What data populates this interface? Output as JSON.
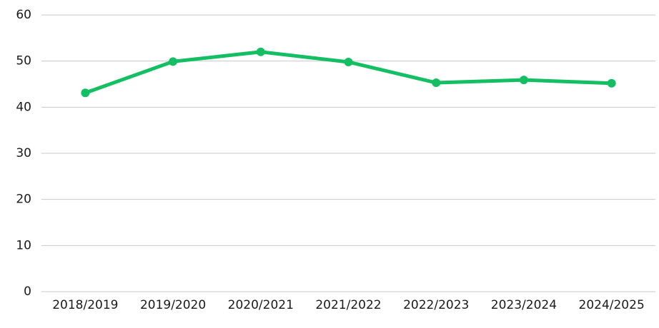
{
  "chart_data": {
    "type": "line",
    "categories": [
      "2018/2019",
      "2019/2020",
      "2020/2021",
      "2021/2022",
      "2022/2023",
      "2023/2024",
      "2024/2025"
    ],
    "values": [
      43.1,
      49.9,
      52.0,
      49.8,
      45.3,
      45.9,
      45.2
    ],
    "color": "#14bf63",
    "ylim": [
      0,
      60
    ],
    "yticks": [
      0,
      10,
      20,
      30,
      40,
      50,
      60
    ],
    "grid": true
  }
}
